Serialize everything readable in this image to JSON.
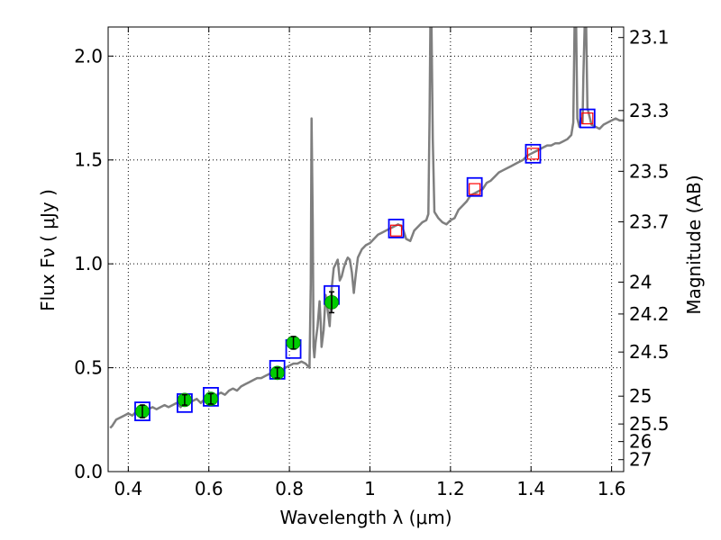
{
  "chart_data": {
    "type": "scatter",
    "xlabel": "Wavelength  λ (μm)",
    "ylabel": "Flux  Fν  ( μJy )",
    "ylabel_right": "Magnitude (AB)",
    "xlim": [
      0.35,
      1.63
    ],
    "ylim": [
      0.0,
      2.14
    ],
    "grid": true,
    "x_ticks": [
      {
        "value": 0.4,
        "label": "0.4"
      },
      {
        "value": 0.6,
        "label": "0.6"
      },
      {
        "value": 0.8,
        "label": "0.8"
      },
      {
        "value": 1.0,
        "label": "1"
      },
      {
        "value": 1.2,
        "label": "1.2"
      },
      {
        "value": 1.4,
        "label": "1.4"
      },
      {
        "value": 1.6,
        "label": "1.6"
      }
    ],
    "y_ticks": [
      {
        "value": 0.0,
        "label": "0.0"
      },
      {
        "value": 0.5,
        "label": "0.5"
      },
      {
        "value": 1.0,
        "label": "1.0"
      },
      {
        "value": 1.5,
        "label": "1.5"
      },
      {
        "value": 2.0,
        "label": "2.0"
      }
    ],
    "mag_ticks": [
      {
        "value": 23.1,
        "label": "23.1"
      },
      {
        "value": 23.3,
        "label": "23.3"
      },
      {
        "value": 23.5,
        "label": "23.5"
      },
      {
        "value": 23.7,
        "label": "23.7"
      },
      {
        "value": 24,
        "label": "24"
      },
      {
        "value": 24.2,
        "label": "24.2"
      },
      {
        "value": 24.5,
        "label": "24.5"
      },
      {
        "value": 25,
        "label": "25"
      },
      {
        "value": 25.5,
        "label": "25.5"
      },
      {
        "value": 26,
        "label": "26"
      },
      {
        "value": 27,
        "label": "27"
      }
    ],
    "series": [
      {
        "kind": "line",
        "color": "#7f7f7f",
        "points": [
          [
            0.355,
            0.21
          ],
          [
            0.36,
            0.22
          ],
          [
            0.37,
            0.25
          ],
          [
            0.38,
            0.26
          ],
          [
            0.39,
            0.27
          ],
          [
            0.4,
            0.28
          ],
          [
            0.41,
            0.27
          ],
          [
            0.42,
            0.29
          ],
          [
            0.43,
            0.3
          ],
          [
            0.44,
            0.28
          ],
          [
            0.45,
            0.3
          ],
          [
            0.46,
            0.31
          ],
          [
            0.47,
            0.3
          ],
          [
            0.48,
            0.31
          ],
          [
            0.49,
            0.32
          ],
          [
            0.5,
            0.31
          ],
          [
            0.51,
            0.32
          ],
          [
            0.52,
            0.33
          ],
          [
            0.53,
            0.31
          ],
          [
            0.54,
            0.34
          ],
          [
            0.55,
            0.33
          ],
          [
            0.56,
            0.34
          ],
          [
            0.57,
            0.35
          ],
          [
            0.58,
            0.33
          ],
          [
            0.59,
            0.35
          ],
          [
            0.6,
            0.36
          ],
          [
            0.61,
            0.35
          ],
          [
            0.62,
            0.37
          ],
          [
            0.63,
            0.38
          ],
          [
            0.64,
            0.37
          ],
          [
            0.65,
            0.39
          ],
          [
            0.66,
            0.4
          ],
          [
            0.67,
            0.39
          ],
          [
            0.68,
            0.41
          ],
          [
            0.69,
            0.42
          ],
          [
            0.7,
            0.43
          ],
          [
            0.71,
            0.44
          ],
          [
            0.72,
            0.45
          ],
          [
            0.73,
            0.45
          ],
          [
            0.74,
            0.46
          ],
          [
            0.75,
            0.47
          ],
          [
            0.76,
            0.48
          ],
          [
            0.77,
            0.49
          ],
          [
            0.78,
            0.49
          ],
          [
            0.79,
            0.5
          ],
          [
            0.8,
            0.51
          ],
          [
            0.81,
            0.52
          ],
          [
            0.82,
            0.52
          ],
          [
            0.83,
            0.53
          ],
          [
            0.84,
            0.52
          ],
          [
            0.845,
            0.51
          ],
          [
            0.85,
            0.5
          ],
          [
            0.853,
            0.9
          ],
          [
            0.855,
            1.7
          ],
          [
            0.858,
            1.2
          ],
          [
            0.86,
            0.6
          ],
          [
            0.862,
            0.55
          ],
          [
            0.865,
            0.62
          ],
          [
            0.87,
            0.7
          ],
          [
            0.875,
            0.82
          ],
          [
            0.878,
            0.7
          ],
          [
            0.88,
            0.6
          ],
          [
            0.885,
            0.68
          ],
          [
            0.89,
            0.85
          ],
          [
            0.895,
            0.78
          ],
          [
            0.9,
            0.7
          ],
          [
            0.905,
            0.88
          ],
          [
            0.91,
            0.98
          ],
          [
            0.915,
            1.0
          ],
          [
            0.92,
            1.02
          ],
          [
            0.925,
            0.92
          ],
          [
            0.93,
            0.94
          ],
          [
            0.935,
            0.98
          ],
          [
            0.94,
            1.01
          ],
          [
            0.945,
            1.03
          ],
          [
            0.95,
            1.02
          ],
          [
            0.955,
            0.96
          ],
          [
            0.96,
            0.86
          ],
          [
            0.965,
            0.95
          ],
          [
            0.97,
            1.03
          ],
          [
            0.975,
            1.05
          ],
          [
            0.98,
            1.07
          ],
          [
            0.99,
            1.09
          ],
          [
            1.0,
            1.1
          ],
          [
            1.01,
            1.12
          ],
          [
            1.02,
            1.14
          ],
          [
            1.03,
            1.15
          ],
          [
            1.04,
            1.16
          ],
          [
            1.05,
            1.17
          ],
          [
            1.06,
            1.18
          ],
          [
            1.07,
            1.19
          ],
          [
            1.08,
            1.18
          ],
          [
            1.09,
            1.12
          ],
          [
            1.1,
            1.11
          ],
          [
            1.11,
            1.16
          ],
          [
            1.12,
            1.18
          ],
          [
            1.13,
            1.2
          ],
          [
            1.14,
            1.21
          ],
          [
            1.145,
            1.24
          ],
          [
            1.148,
            1.7
          ],
          [
            1.15,
            2.14
          ],
          [
            1.153,
            2.14
          ],
          [
            1.156,
            1.6
          ],
          [
            1.16,
            1.25
          ],
          [
            1.17,
            1.22
          ],
          [
            1.18,
            1.2
          ],
          [
            1.19,
            1.19
          ],
          [
            1.2,
            1.21
          ],
          [
            1.21,
            1.22
          ],
          [
            1.22,
            1.26
          ],
          [
            1.23,
            1.28
          ],
          [
            1.24,
            1.3
          ],
          [
            1.25,
            1.33
          ],
          [
            1.26,
            1.34
          ],
          [
            1.27,
            1.35
          ],
          [
            1.28,
            1.36
          ],
          [
            1.29,
            1.39
          ],
          [
            1.3,
            1.4
          ],
          [
            1.31,
            1.42
          ],
          [
            1.32,
            1.44
          ],
          [
            1.33,
            1.45
          ],
          [
            1.34,
            1.46
          ],
          [
            1.35,
            1.47
          ],
          [
            1.36,
            1.48
          ],
          [
            1.37,
            1.49
          ],
          [
            1.38,
            1.5
          ],
          [
            1.39,
            1.52
          ],
          [
            1.4,
            1.53
          ],
          [
            1.41,
            1.54
          ],
          [
            1.42,
            1.55
          ],
          [
            1.43,
            1.56
          ],
          [
            1.44,
            1.57
          ],
          [
            1.45,
            1.57
          ],
          [
            1.46,
            1.58
          ],
          [
            1.47,
            1.58
          ],
          [
            1.48,
            1.59
          ],
          [
            1.49,
            1.6
          ],
          [
            1.5,
            1.62
          ],
          [
            1.505,
            1.68
          ],
          [
            1.508,
            2.14
          ],
          [
            1.512,
            2.14
          ],
          [
            1.515,
            1.7
          ],
          [
            1.52,
            1.66
          ],
          [
            1.525,
            1.7
          ],
          [
            1.528,
            1.68
          ],
          [
            1.53,
            1.9
          ],
          [
            1.533,
            2.14
          ],
          [
            1.537,
            2.14
          ],
          [
            1.54,
            1.75
          ],
          [
            1.55,
            1.67
          ],
          [
            1.56,
            1.66
          ],
          [
            1.57,
            1.65
          ],
          [
            1.58,
            1.67
          ],
          [
            1.59,
            1.68
          ],
          [
            1.6,
            1.69
          ],
          [
            1.61,
            1.7
          ],
          [
            1.62,
            1.69
          ],
          [
            1.63,
            1.69
          ]
        ]
      },
      {
        "kind": "blue_squares",
        "color": "#0000ff",
        "points": [
          [
            0.435,
            0.29
          ],
          [
            0.54,
            0.33
          ],
          [
            0.605,
            0.36
          ],
          [
            0.77,
            0.49
          ],
          [
            0.81,
            0.59
          ],
          [
            0.905,
            0.85
          ],
          [
            1.065,
            1.17
          ],
          [
            1.26,
            1.37
          ],
          [
            1.405,
            1.53
          ],
          [
            1.54,
            1.7
          ]
        ]
      },
      {
        "kind": "red_squares",
        "color": "#ff0000",
        "points": [
          [
            1.065,
            1.16
          ],
          [
            1.26,
            1.36
          ],
          [
            1.405,
            1.53
          ],
          [
            1.54,
            1.7
          ]
        ]
      },
      {
        "kind": "green_points",
        "color": "#00cc00",
        "points": [
          {
            "x": 0.435,
            "y": 0.29,
            "err": 0.03
          },
          {
            "x": 0.54,
            "y": 0.345,
            "err": 0.025
          },
          {
            "x": 0.605,
            "y": 0.35,
            "err": 0.025
          },
          {
            "x": 0.77,
            "y": 0.475,
            "err": 0.025
          },
          {
            "x": 0.81,
            "y": 0.62,
            "err": 0.03
          },
          {
            "x": 0.905,
            "y": 0.815,
            "err": 0.05
          }
        ]
      }
    ]
  }
}
